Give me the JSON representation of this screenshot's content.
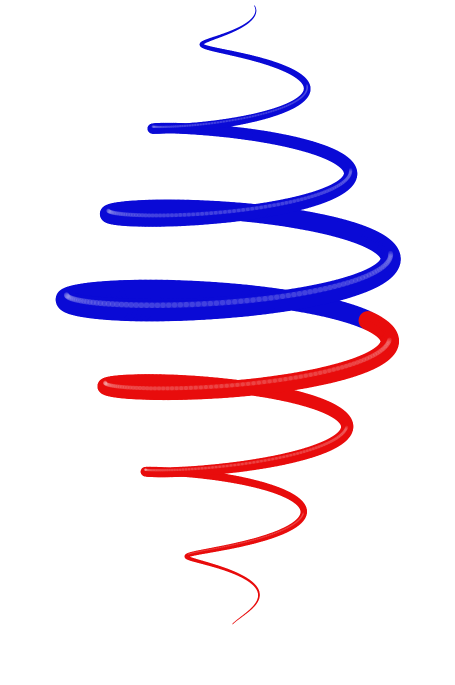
{
  "scene": {
    "background": "#ffffff",
    "upper_color": "#0a0ad6",
    "lower_color": "#e80c0c"
  }
}
